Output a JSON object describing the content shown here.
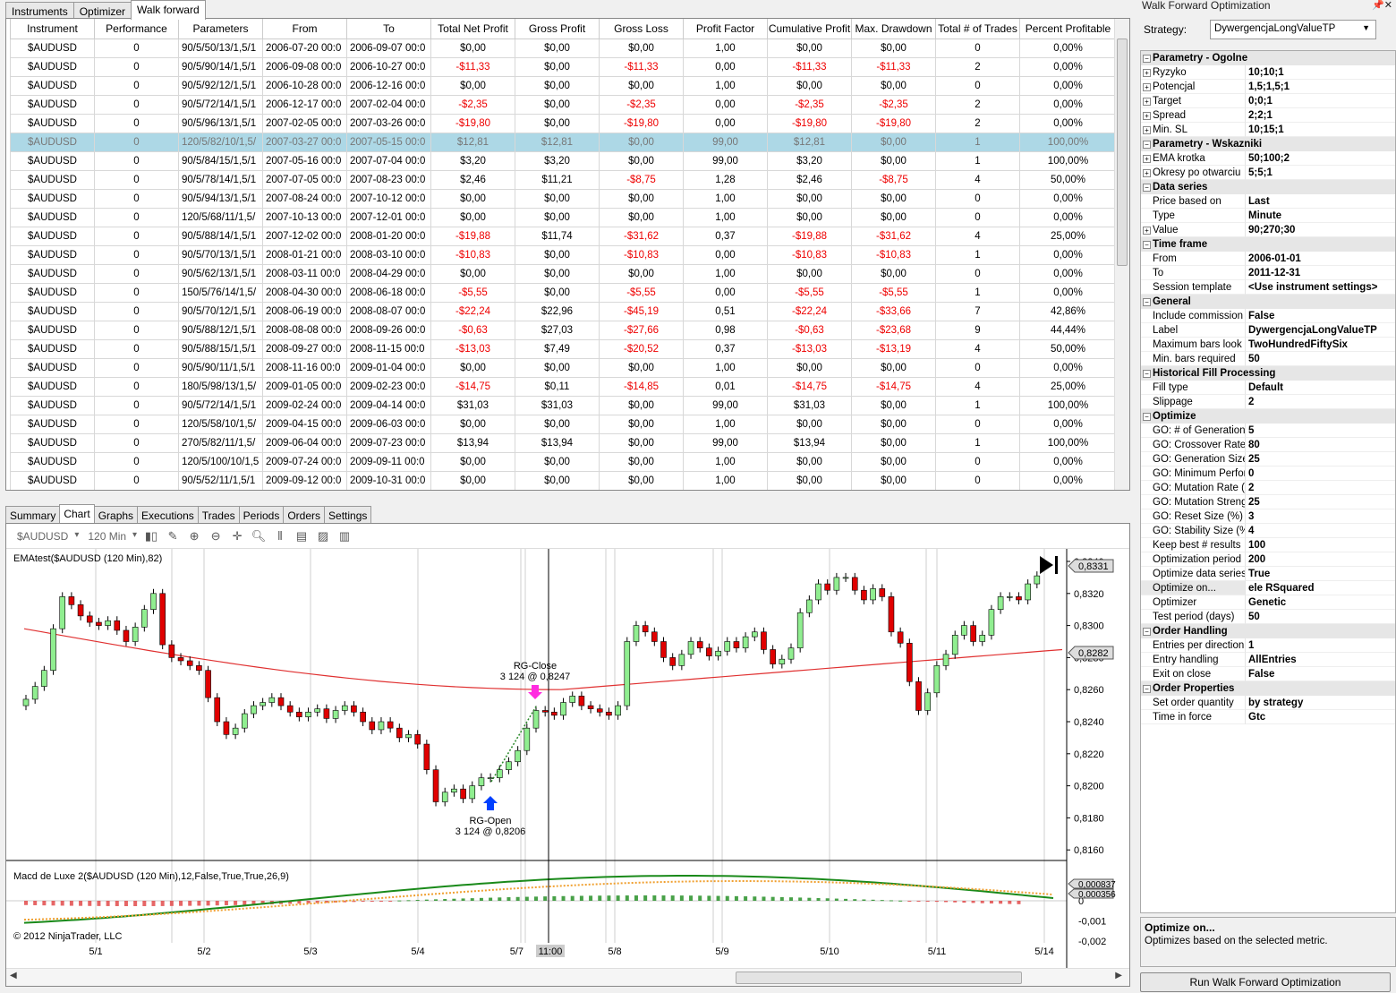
{
  "top_tabs": [
    "Instruments",
    "Optimizer",
    "Walk forward"
  ],
  "grid": {
    "columns": [
      "Instrument",
      "Performance",
      "Parameters",
      "From",
      "To",
      "Total Net Profit",
      "Gross Profit",
      "Gross Loss",
      "Profit Factor",
      "Cumulative Profit",
      "Max. Drawdown",
      "Total # of Trades",
      "Percent Profitable"
    ],
    "rows": [
      [
        "$AUDUSD",
        "0",
        "90/5/50/13/1,5/1",
        "2006-07-20 00:0",
        "2006-09-07 00:0",
        "$0,00",
        "$0,00",
        "$0,00",
        "1,00",
        "$0,00",
        "$0,00",
        "0",
        "0,00%"
      ],
      [
        "$AUDUSD",
        "0",
        "90/5/90/14/1,5/1",
        "2006-09-08 00:0",
        "2006-10-27 00:0",
        "-$11,33",
        "$0,00",
        "-$11,33",
        "0,00",
        "-$11,33",
        "-$11,33",
        "2",
        "0,00%"
      ],
      [
        "$AUDUSD",
        "0",
        "90/5/92/12/1,5/1",
        "2006-10-28 00:0",
        "2006-12-16 00:0",
        "$0,00",
        "$0,00",
        "$0,00",
        "1,00",
        "$0,00",
        "$0,00",
        "0",
        "0,00%"
      ],
      [
        "$AUDUSD",
        "0",
        "90/5/72/14/1,5/1",
        "2006-12-17 00:0",
        "2007-02-04 00:0",
        "-$2,35",
        "$0,00",
        "-$2,35",
        "0,00",
        "-$2,35",
        "-$2,35",
        "2",
        "0,00%"
      ],
      [
        "$AUDUSD",
        "0",
        "90/5/96/13/1,5/1",
        "2007-02-05 00:0",
        "2007-03-26 00:0",
        "-$19,80",
        "$0,00",
        "-$19,80",
        "0,00",
        "-$19,80",
        "-$19,80",
        "2",
        "0,00%"
      ],
      [
        "$AUDUSD",
        "0",
        "120/5/82/10/1,5/",
        "2007-03-27 00:0",
        "2007-05-15 00:0",
        "$12,81",
        "$12,81",
        "$0,00",
        "99,00",
        "$12,81",
        "$0,00",
        "1",
        "100,00%"
      ],
      [
        "$AUDUSD",
        "0",
        "90/5/84/15/1,5/1",
        "2007-05-16 00:0",
        "2007-07-04 00:0",
        "$3,20",
        "$3,20",
        "$0,00",
        "99,00",
        "$3,20",
        "$0,00",
        "1",
        "100,00%"
      ],
      [
        "$AUDUSD",
        "0",
        "90/5/78/14/1,5/1",
        "2007-07-05 00:0",
        "2007-08-23 00:0",
        "$2,46",
        "$11,21",
        "-$8,75",
        "1,28",
        "$2,46",
        "-$8,75",
        "4",
        "50,00%"
      ],
      [
        "$AUDUSD",
        "0",
        "90/5/94/13/1,5/1",
        "2007-08-24 00:0",
        "2007-10-12 00:0",
        "$0,00",
        "$0,00",
        "$0,00",
        "1,00",
        "$0,00",
        "$0,00",
        "0",
        "0,00%"
      ],
      [
        "$AUDUSD",
        "0",
        "120/5/68/11/1,5/",
        "2007-10-13 00:0",
        "2007-12-01 00:0",
        "$0,00",
        "$0,00",
        "$0,00",
        "1,00",
        "$0,00",
        "$0,00",
        "0",
        "0,00%"
      ],
      [
        "$AUDUSD",
        "0",
        "90/5/88/14/1,5/1",
        "2007-12-02 00:0",
        "2008-01-20 00:0",
        "-$19,88",
        "$11,74",
        "-$31,62",
        "0,37",
        "-$19,88",
        "-$31,62",
        "4",
        "25,00%"
      ],
      [
        "$AUDUSD",
        "0",
        "90/5/70/13/1,5/1",
        "2008-01-21 00:0",
        "2008-03-10 00:0",
        "-$10,83",
        "$0,00",
        "-$10,83",
        "0,00",
        "-$10,83",
        "-$10,83",
        "1",
        "0,00%"
      ],
      [
        "$AUDUSD",
        "0",
        "90/5/62/13/1,5/1",
        "2008-03-11 00:0",
        "2008-04-29 00:0",
        "$0,00",
        "$0,00",
        "$0,00",
        "1,00",
        "$0,00",
        "$0,00",
        "0",
        "0,00%"
      ],
      [
        "$AUDUSD",
        "0",
        "150/5/76/14/1,5/",
        "2008-04-30 00:0",
        "2008-06-18 00:0",
        "-$5,55",
        "$0,00",
        "-$5,55",
        "0,00",
        "-$5,55",
        "-$5,55",
        "1",
        "0,00%"
      ],
      [
        "$AUDUSD",
        "0",
        "90/5/70/12/1,5/1",
        "2008-06-19 00:0",
        "2008-08-07 00:0",
        "-$22,24",
        "$22,96",
        "-$45,19",
        "0,51",
        "-$22,24",
        "-$33,66",
        "7",
        "42,86%"
      ],
      [
        "$AUDUSD",
        "0",
        "90/5/88/12/1,5/1",
        "2008-08-08 00:0",
        "2008-09-26 00:0",
        "-$0,63",
        "$27,03",
        "-$27,66",
        "0,98",
        "-$0,63",
        "-$23,68",
        "9",
        "44,44%"
      ],
      [
        "$AUDUSD",
        "0",
        "90/5/88/15/1,5/1",
        "2008-09-27 00:0",
        "2008-11-15 00:0",
        "-$13,03",
        "$7,49",
        "-$20,52",
        "0,37",
        "-$13,03",
        "-$13,19",
        "4",
        "50,00%"
      ],
      [
        "$AUDUSD",
        "0",
        "90/5/90/11/1,5/1",
        "2008-11-16 00:0",
        "2009-01-04 00:0",
        "$0,00",
        "$0,00",
        "$0,00",
        "1,00",
        "$0,00",
        "$0,00",
        "0",
        "0,00%"
      ],
      [
        "$AUDUSD",
        "0",
        "180/5/98/13/1,5/",
        "2009-01-05 00:0",
        "2009-02-23 00:0",
        "-$14,75",
        "$0,11",
        "-$14,85",
        "0,01",
        "-$14,75",
        "-$14,75",
        "4",
        "25,00%"
      ],
      [
        "$AUDUSD",
        "0",
        "90/5/72/14/1,5/1",
        "2009-02-24 00:0",
        "2009-04-14 00:0",
        "$31,03",
        "$31,03",
        "$0,00",
        "99,00",
        "$31,03",
        "$0,00",
        "1",
        "100,00%"
      ],
      [
        "$AUDUSD",
        "0",
        "120/5/58/10/1,5/",
        "2009-04-15 00:0",
        "2009-06-03 00:0",
        "$0,00",
        "$0,00",
        "$0,00",
        "1,00",
        "$0,00",
        "$0,00",
        "0",
        "0,00%"
      ],
      [
        "$AUDUSD",
        "0",
        "270/5/82/11/1,5/",
        "2009-06-04 00:0",
        "2009-07-23 00:0",
        "$13,94",
        "$13,94",
        "$0,00",
        "99,00",
        "$13,94",
        "$0,00",
        "1",
        "100,00%"
      ],
      [
        "$AUDUSD",
        "0",
        "120/5/100/10/1,5",
        "2009-07-24 00:0",
        "2009-09-11 00:0",
        "$0,00",
        "$0,00",
        "$0,00",
        "1,00",
        "$0,00",
        "$0,00",
        "0",
        "0,00%"
      ],
      [
        "$AUDUSD",
        "0",
        "90/5/52/11/1,5/1",
        "2009-09-12 00:0",
        "2009-10-31 00:0",
        "$0,00",
        "$0,00",
        "$0,00",
        "1,00",
        "$0,00",
        "$0,00",
        "0",
        "0,00%"
      ]
    ],
    "selected_row": 5
  },
  "bottom_tabs": [
    "Summary",
    "Chart",
    "Graphs",
    "Executions",
    "Trades",
    "Periods",
    "Orders",
    "Settings"
  ],
  "chart": {
    "instrument": "$AUDUSD",
    "interval": "120 Min",
    "price_label": "EMAtest($AUDUSD (120 Min),82)",
    "macd_label": "Macd de Luxe 2($AUDUSD (120 Min),12,False,True,True,26,9)",
    "copyright": "© 2012 NinjaTrader, LLC",
    "price_ticks": [
      "0,8340",
      "0,8320",
      "0,8300",
      "0,8280",
      "0,8260",
      "0,8240",
      "0,8220",
      "0,8200",
      "0,8180",
      "0,8160"
    ],
    "last_price": "0,8331",
    "ema_price": "0,8282",
    "macd_ticks": [
      "0",
      "-0,001",
      "-0,002"
    ],
    "macd_tag1": "0,000837",
    "macd_tag2": "0,000356",
    "x_labels": [
      "5/1",
      "5/2",
      "5/3",
      "5/4",
      "5/7",
      "5/8",
      "5/9",
      "5/10",
      "5/11",
      "5/14"
    ],
    "crosshair_label": "11:00",
    "rg_close": "RG-Close",
    "rg_close_val": "3 124 @ 0,8247",
    "rg_open": "RG-Open",
    "rg_open_val": "3 124 @ 0,8206",
    "colors": {
      "up": "#90ee90",
      "down": "#e00000",
      "ema": "#e03030",
      "macd": "#1a8a1a",
      "signal": "#f0a030"
    }
  },
  "panel": {
    "title": "Walk Forward Optimization",
    "strategy_label": "Strategy:",
    "strategy": "DywergencjaLongValueTP",
    "rows": [
      {
        "cat": "Parametry - Ogolne"
      },
      {
        "k": "Ryzyko",
        "v": "10;10;1",
        "ex": true
      },
      {
        "k": "Potencjal",
        "v": "1,5;1,5;1",
        "ex": true
      },
      {
        "k": "Target",
        "v": "0;0;1",
        "ex": true
      },
      {
        "k": "Spread",
        "v": "2;2;1",
        "ex": true
      },
      {
        "k": "Min. SL",
        "v": "10;15;1",
        "ex": true
      },
      {
        "cat": "Parametry - Wskazniki"
      },
      {
        "k": "EMA krotka",
        "v": "50;100;2",
        "ex": true
      },
      {
        "k": "Okresy po otwarciu",
        "v": "5;5;1",
        "ex": true
      },
      {
        "cat": "Data series"
      },
      {
        "k": "Price based on",
        "v": "Last"
      },
      {
        "k": "Type",
        "v": "Minute"
      },
      {
        "k": "Value",
        "v": "90;270;30",
        "ex": true
      },
      {
        "cat": "Time frame"
      },
      {
        "k": "From",
        "v": "2006-01-01"
      },
      {
        "k": "To",
        "v": "2011-12-31"
      },
      {
        "k": "Session template",
        "v": "<Use instrument settings>"
      },
      {
        "cat": "General"
      },
      {
        "k": "Include commission",
        "v": "False"
      },
      {
        "k": "Label",
        "v": "DywergencjaLongValueTP"
      },
      {
        "k": "Maximum bars look bac",
        "v": "TwoHundredFiftySix"
      },
      {
        "k": "Min. bars required",
        "v": "50"
      },
      {
        "cat": "Historical Fill Processing"
      },
      {
        "k": "Fill type",
        "v": "Default"
      },
      {
        "k": "Slippage",
        "v": "2"
      },
      {
        "cat": "Optimize"
      },
      {
        "k": "GO: # of Generations",
        "v": "5"
      },
      {
        "k": "GO: Crossover Rate (%",
        "v": "80"
      },
      {
        "k": "GO: Generation Size",
        "v": "25"
      },
      {
        "k": "GO: Minimum Performa",
        "v": "0"
      },
      {
        "k": "GO: Mutation Rate (%)",
        "v": "2"
      },
      {
        "k": "GO: Mutation Strength",
        "v": "25"
      },
      {
        "k": "GO: Reset Size (%)",
        "v": "3"
      },
      {
        "k": "GO: Stability Size (%)",
        "v": "4"
      },
      {
        "k": "Keep best # results",
        "v": "100"
      },
      {
        "k": "Optimization period (da",
        "v": "200"
      },
      {
        "k": "Optimize data series",
        "v": "True"
      },
      {
        "k": "Optimize on...",
        "v": "ele RSquared",
        "hl": true
      },
      {
        "k": "Optimizer",
        "v": "Genetic"
      },
      {
        "k": "Test period (days)",
        "v": "50"
      },
      {
        "cat": "Order Handling"
      },
      {
        "k": "Entries per direction",
        "v": "1"
      },
      {
        "k": "Entry handling",
        "v": "AllEntries"
      },
      {
        "k": "Exit on close",
        "v": "False"
      },
      {
        "cat": "Order Properties"
      },
      {
        "k": "Set order quantity",
        "v": "by strategy"
      },
      {
        "k": "Time in force",
        "v": "Gtc"
      }
    ],
    "desc_title": "Optimize on...",
    "desc_text": "Optimizes based on the selected metric.",
    "run_button": "Run Walk Forward Optimization"
  }
}
